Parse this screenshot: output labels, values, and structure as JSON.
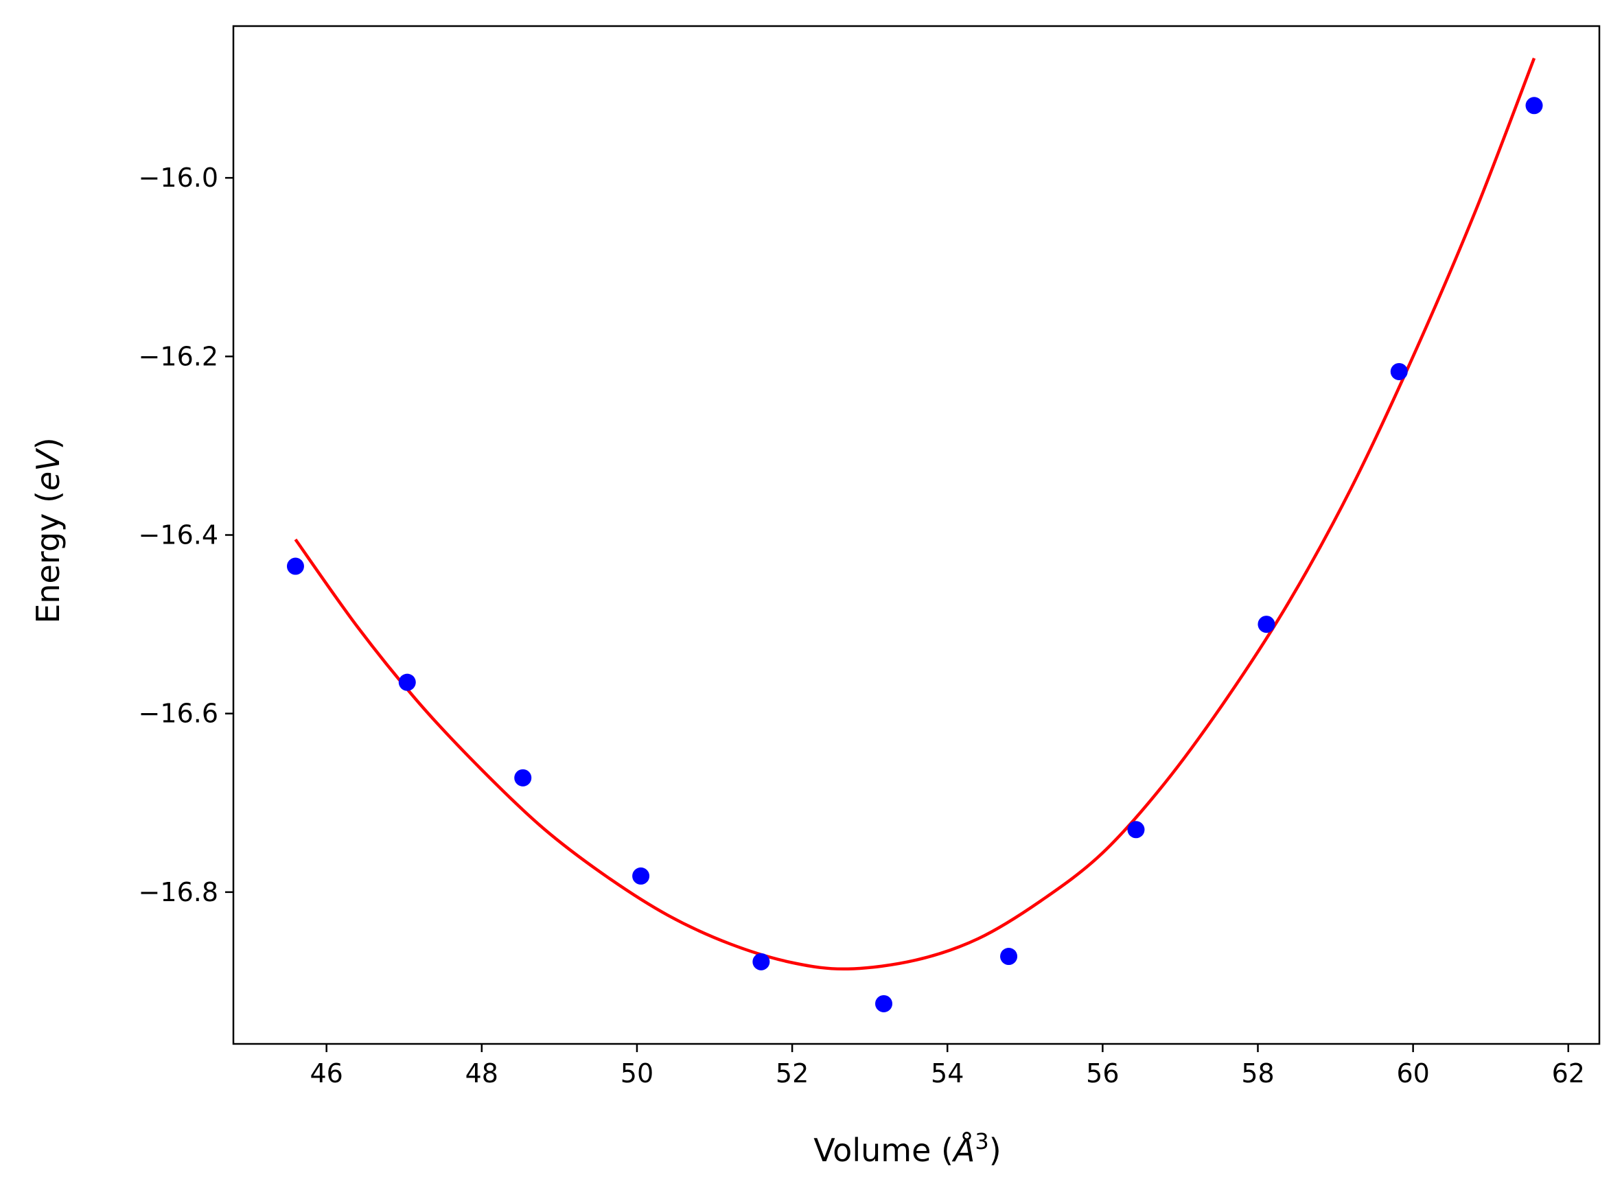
{
  "chart_data": {
    "type": "scatter",
    "title": "",
    "xlabel": {
      "text": "Volume (",
      "unit_base": "Å",
      "unit_exp": "3",
      "close": ")"
    },
    "ylabel": {
      "text": "Energy (",
      "unit": "eV",
      "close": ")"
    },
    "xlim": [
      44.8,
      62.4
    ],
    "ylim": [
      -16.97,
      -15.83
    ],
    "xticks": [
      46,
      48,
      50,
      52,
      54,
      56,
      58,
      60,
      62
    ],
    "xtick_labels": [
      "46",
      "48",
      "50",
      "52",
      "54",
      "56",
      "58",
      "60",
      "62"
    ],
    "yticks": [
      -16.0,
      -16.2,
      -16.4,
      -16.6,
      -16.8
    ],
    "ytick_labels": [
      "−16.0",
      "−16.2",
      "−16.4",
      "−16.6",
      "−16.8"
    ],
    "grid": false,
    "series": [
      {
        "kind": "points",
        "color": "#0000ff",
        "x": [
          45.6,
          47.04,
          48.53,
          50.05,
          51.6,
          53.18,
          54.79,
          56.43,
          58.11,
          59.82,
          61.56
        ],
        "y": [
          -16.435,
          -16.565,
          -16.672,
          -16.782,
          -16.878,
          -16.925,
          -16.872,
          -16.73,
          -16.5,
          -16.217,
          -15.919
        ]
      },
      {
        "kind": "fit",
        "color": "#ff0000",
        "x": [
          45.6,
          46.4,
          47.2,
          48.0,
          48.8,
          49.6,
          50.4,
          51.2,
          52.0,
          52.72,
          53.6,
          54.4,
          55.2,
          56.0,
          56.8,
          57.6,
          58.4,
          59.2,
          60.0,
          60.8,
          61.56
        ],
        "y": [
          -16.405,
          -16.503,
          -16.589,
          -16.663,
          -16.729,
          -16.782,
          -16.826,
          -16.858,
          -16.879,
          -16.886,
          -16.876,
          -16.852,
          -16.81,
          -16.756,
          -16.678,
          -16.583,
          -16.475,
          -16.348,
          -16.2,
          -16.038,
          -15.866
        ]
      }
    ]
  }
}
